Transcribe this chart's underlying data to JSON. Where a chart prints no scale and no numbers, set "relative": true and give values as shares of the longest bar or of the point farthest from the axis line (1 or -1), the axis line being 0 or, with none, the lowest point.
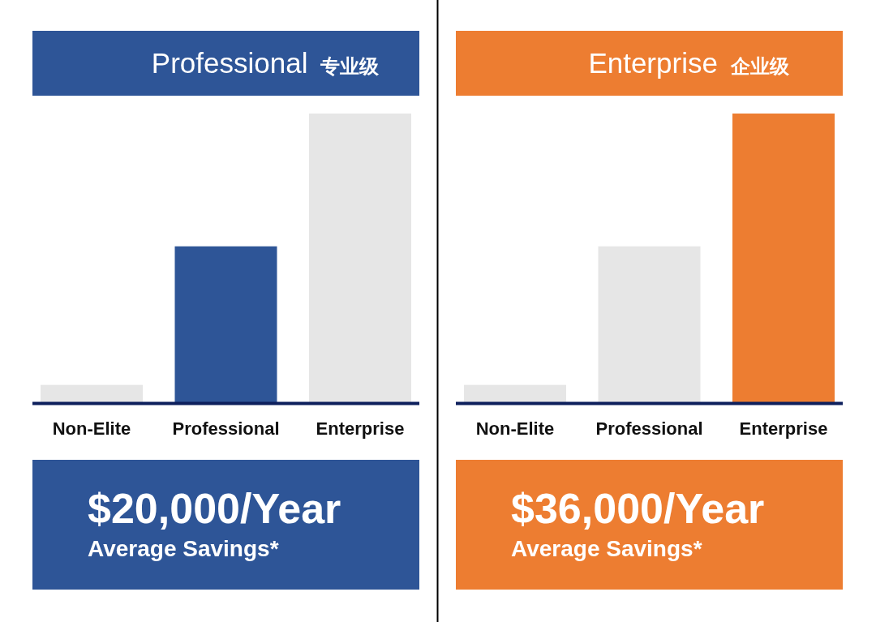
{
  "chart_data": [
    {
      "type": "bar",
      "title": "Professional 专业级",
      "categories": [
        "Non-Elite",
        "Professional",
        "Enterprise"
      ],
      "values": [
        0.06,
        0.54,
        1
      ],
      "colors": [
        "#e6e6e6",
        "#2e5597",
        "#e6e6e6"
      ],
      "relative": true,
      "annotations": [
        "$20,000/Year",
        "Average Savings*"
      ]
    },
    {
      "type": "bar",
      "title": "Enterprise 企业级",
      "categories": [
        "Non-Elite",
        "Professional",
        "Enterprise"
      ],
      "values": [
        0.06,
        0.54,
        1
      ],
      "colors": [
        "#e6e6e6",
        "#e6e6e6",
        "#ed7d31"
      ],
      "relative": true,
      "annotations": [
        "$36,000/Year",
        "Average Savings*"
      ]
    }
  ]
}
